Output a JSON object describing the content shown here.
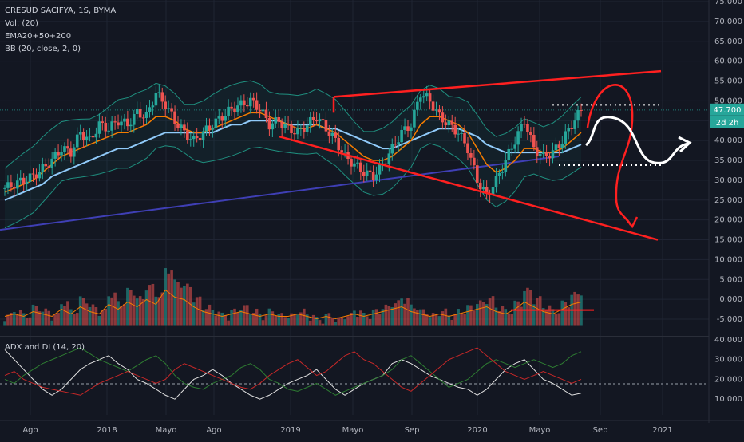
{
  "legend": {
    "title": "CRESUD SACIFYA, 1S, BYMA",
    "vol": "Vol. (20)",
    "ema": "EMA20+50+200",
    "bb": "BB (20, close, 2, 0)",
    "adx": "ADX and DI (14, 20)"
  },
  "price_tag": "47.700",
  "time_tag": "2d 2h",
  "colors": {
    "background": "#131722",
    "up": "#26a69a",
    "down": "#ef5350",
    "ema20": "#f57c00",
    "ema50": "#90caf9",
    "ema200": "#3f3fb5",
    "bb": "#1f8f7f",
    "drawing_red": "#ff2020",
    "drawing_white": "#ffffff"
  },
  "chart_data": [
    {
      "type": "candlestick",
      "title": "CRESUD SACIFYA, 1S, BYMA",
      "x_ticks": [
        "Ago",
        "2018",
        "Mayo",
        "Ago",
        "2019",
        "Mayo",
        "Sep",
        "2020",
        "Mayo",
        "Sep",
        "2021"
      ],
      "price_ticks": [
        "75.000",
        "70.000",
        "65.000",
        "60.000",
        "55.000",
        "50.000",
        "45.000",
        "40.000",
        "35.000",
        "30.000",
        "25.000",
        "20.000",
        "15.000",
        "10.000",
        "5.000",
        "0.000",
        "-5.000"
      ],
      "adx_ticks": [
        "40.000",
        "30.000",
        "20.000",
        "10.000"
      ],
      "ylim": [
        -7,
        75
      ],
      "last_close": 47.7,
      "ohlc_path": [
        28,
        29,
        30,
        31,
        33,
        35,
        38,
        37,
        42,
        40,
        44,
        43,
        45,
        44,
        47,
        46,
        52,
        49,
        45,
        42,
        40,
        42,
        44,
        46,
        48,
        49,
        50,
        48,
        44,
        45,
        43,
        42,
        44,
        46,
        43,
        40,
        36,
        34,
        32,
        31,
        34,
        38,
        42,
        44,
        52,
        50,
        46,
        44,
        42,
        38,
        30,
        26,
        30,
        35,
        40,
        45,
        38,
        36,
        37,
        40,
        44,
        47.7
      ],
      "ema20": [
        27,
        28,
        29,
        30,
        32,
        34,
        36,
        37,
        38,
        39,
        40,
        41,
        42,
        42,
        43,
        44,
        46,
        46,
        45,
        43,
        42,
        42,
        43,
        44,
        45,
        46,
        47,
        47,
        46,
        45,
        44,
        43,
        43,
        44,
        43,
        42,
        40,
        38,
        36,
        35,
        35,
        36,
        38,
        40,
        44,
        46,
        46,
        45,
        44,
        42,
        38,
        34,
        32,
        33,
        35,
        38,
        38,
        37,
        37,
        38,
        40,
        42
      ],
      "ema50": [
        25,
        26,
        27,
        28,
        29,
        31,
        32,
        33,
        34,
        35,
        36,
        37,
        38,
        38,
        39,
        40,
        41,
        42,
        42,
        42,
        42,
        42,
        42,
        43,
        44,
        44,
        45,
        45,
        45,
        45,
        44,
        44,
        44,
        44,
        43,
        43,
        42,
        41,
        40,
        39,
        38,
        38,
        39,
        40,
        41,
        42,
        43,
        43,
        43,
        42,
        41,
        39,
        38,
        37,
        37,
        37,
        37,
        37,
        37,
        37,
        38,
        39
      ],
      "ema200_start": 17.5,
      "ema200_end": 36,
      "volume": [
        1,
        2,
        1,
        3,
        2,
        1,
        4,
        2,
        5,
        3,
        2,
        6,
        4,
        7,
        5,
        8,
        6,
        12,
        9,
        8,
        5,
        3,
        2,
        1,
        2,
        3,
        2,
        1,
        2,
        1,
        1,
        2,
        1,
        0,
        1,
        0,
        1,
        2,
        1,
        2,
        3,
        4,
        5,
        3,
        2,
        1,
        2,
        1,
        2,
        3,
        4,
        5,
        3,
        2,
        4,
        7,
        5,
        3,
        2,
        4,
        6,
        7
      ],
      "adx": [
        35,
        30,
        25,
        20,
        15,
        12,
        15,
        20,
        25,
        28,
        30,
        32,
        28,
        25,
        20,
        18,
        15,
        12,
        10,
        15,
        20,
        22,
        25,
        22,
        18,
        15,
        12,
        10,
        12,
        15,
        18,
        20,
        22,
        25,
        20,
        15,
        12,
        15,
        18,
        20,
        22,
        28,
        30,
        28,
        25,
        22,
        20,
        18,
        16,
        15,
        12,
        15,
        20,
        25,
        28,
        30,
        25,
        20,
        18,
        15,
        12,
        13
      ],
      "di_plus": [
        20,
        18,
        22,
        25,
        28,
        30,
        32,
        34,
        36,
        33,
        30,
        28,
        26,
        24,
        27,
        30,
        32,
        28,
        22,
        18,
        16,
        15,
        18,
        20,
        22,
        26,
        28,
        25,
        20,
        18,
        15,
        14,
        16,
        18,
        15,
        12,
        14,
        16,
        18,
        20,
        22,
        25,
        30,
        32,
        28,
        24,
        20,
        16,
        18,
        20,
        24,
        28,
        30,
        28,
        26,
        28,
        30,
        28,
        26,
        28,
        32,
        34
      ],
      "di_minus": [
        22,
        24,
        20,
        18,
        16,
        15,
        14,
        13,
        12,
        15,
        18,
        20,
        22,
        24,
        22,
        20,
        18,
        20,
        25,
        28,
        26,
        24,
        22,
        20,
        18,
        16,
        15,
        18,
        22,
        25,
        28,
        30,
        26,
        22,
        24,
        28,
        32,
        34,
        30,
        28,
        24,
        20,
        16,
        14,
        18,
        22,
        26,
        30,
        32,
        34,
        36,
        32,
        28,
        24,
        22,
        20,
        22,
        24,
        22,
        20,
        18,
        20
      ]
    }
  ]
}
